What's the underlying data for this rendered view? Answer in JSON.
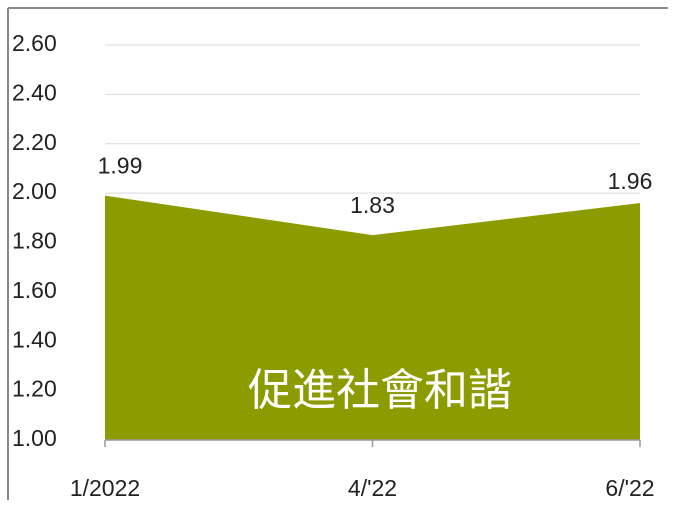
{
  "chart_data": {
    "type": "area",
    "categories": [
      "1/2022",
      "4/'22",
      "6/'22"
    ],
    "values": [
      1.99,
      1.83,
      1.96
    ],
    "color": "#8c9c00",
    "ylim": [
      1.0,
      2.6
    ],
    "yticks": [
      {
        "value": 1.0,
        "label": "1.00"
      },
      {
        "value": 1.2,
        "label": "1.20"
      },
      {
        "value": 1.4,
        "label": "1.40"
      },
      {
        "value": 1.6,
        "label": "1.60"
      },
      {
        "value": 1.8,
        "label": "1.80"
      },
      {
        "value": 2.0,
        "label": "2.00"
      },
      {
        "value": 2.2,
        "label": "2.20"
      },
      {
        "value": 2.4,
        "label": "2.40"
      },
      {
        "value": 2.6,
        "label": "2.60"
      }
    ],
    "grid": true,
    "annotation": "促進社會和諧"
  }
}
